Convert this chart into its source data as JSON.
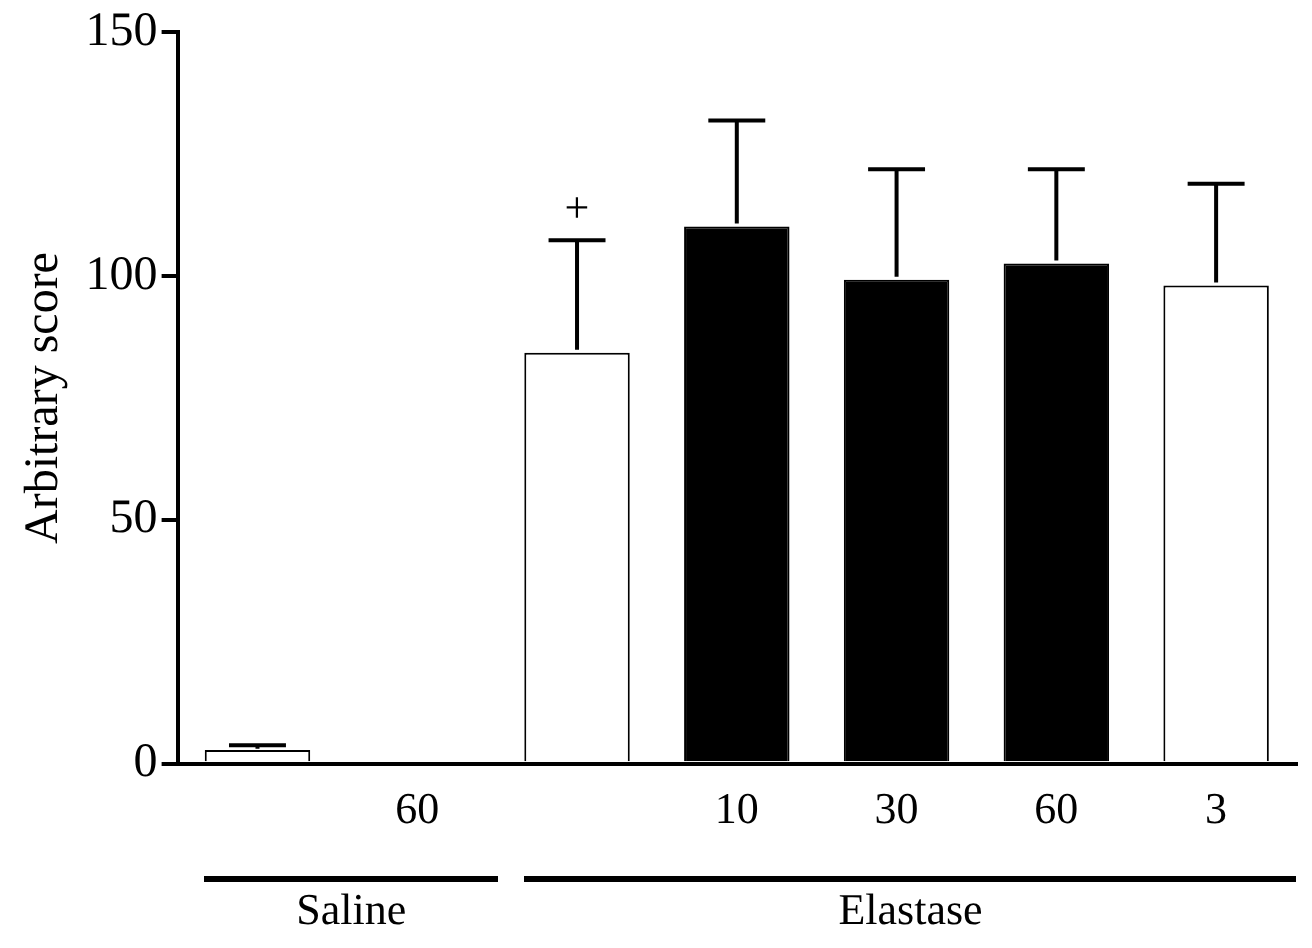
{
  "chart_data": {
    "type": "bar",
    "ylabel": "Arbitrary score",
    "categories": [
      null,
      "60",
      null,
      "10",
      "30",
      "60",
      "3"
    ],
    "values": [
      2.7,
      0,
      84.3,
      110.2,
      99.3,
      102.6,
      98.1
    ],
    "colors": [
      "#ffffff",
      "#ffffff",
      "#ffffff",
      "#000000",
      "#000000",
      "#000000",
      "#ffffff"
    ],
    "errors": [
      [
        2.7,
        3.7
      ],
      null,
      [
        84.3,
        107.4
      ],
      [
        110.2,
        132
      ],
      [
        99.3,
        122
      ],
      [
        102.6,
        122
      ],
      [
        98.1,
        119
      ]
    ],
    "ylim": [
      0,
      150
    ],
    "yticks": [
      0,
      50,
      100,
      150
    ],
    "annotations": [
      "+",
      "Saline",
      "Elastase"
    ],
    "grid": false,
    "legend": false
  }
}
